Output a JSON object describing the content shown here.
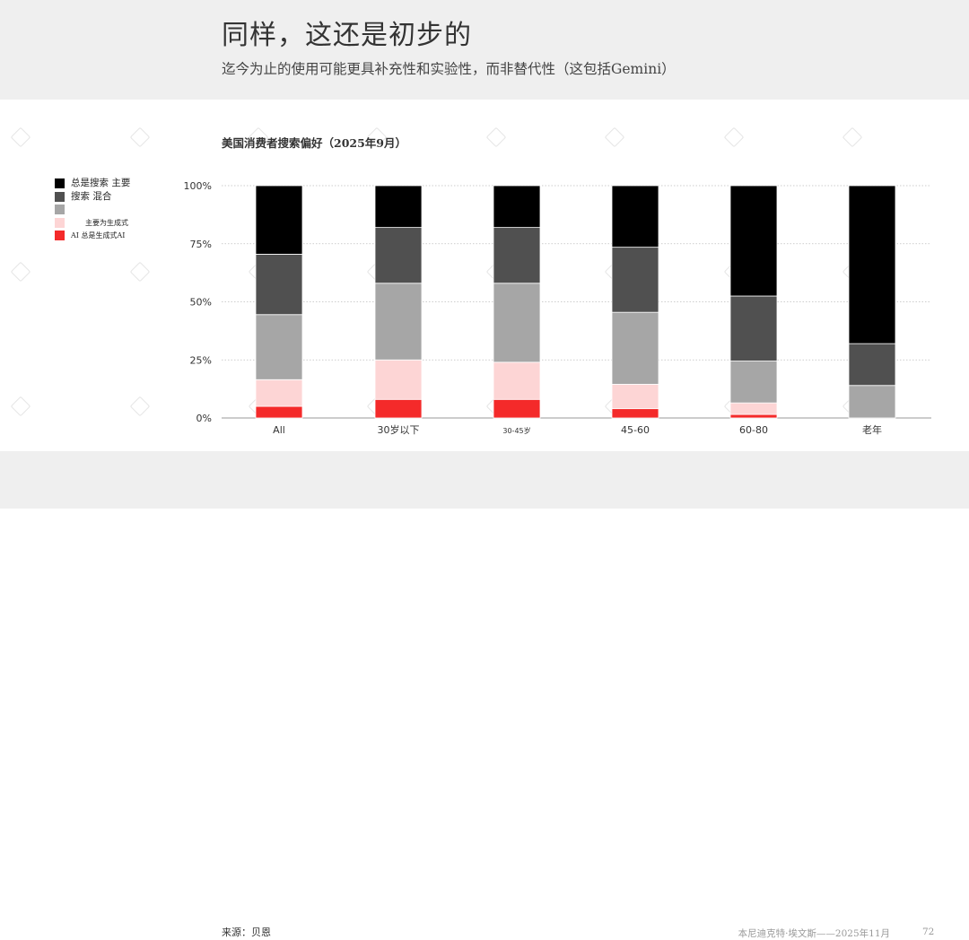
{
  "header": {
    "title": "同样，这还是初步的",
    "subtitle": "迄今为止的使用可能更具补充性和实验性，而非替代性（这包括Gemini）"
  },
  "legend": {
    "items": [
      {
        "label": "总是搜索 主要",
        "color": "#000000"
      },
      {
        "label": "搜索 混合",
        "color": "#505050"
      },
      {
        "label": "",
        "color": "#a6a6a6"
      },
      {
        "label": "主要为生成式",
        "color": "#fdd5d5"
      },
      {
        "label": "AI 总是生成式AI",
        "color": "#f42a2a"
      }
    ]
  },
  "footer": {
    "source": "来源：贝恩",
    "credit": "本尼迪克特·埃文斯——2025年11月",
    "page": "72"
  },
  "chart_data": {
    "type": "bar",
    "stacked": true,
    "title": "美国消费者搜索偏好（2025年9月）",
    "categories": [
      "All",
      "30岁以下",
      "30-45岁",
      "45-60",
      "60-80",
      "老年"
    ],
    "yticks": [
      "0%",
      "25%",
      "50%",
      "75%",
      "100%"
    ],
    "ylim": [
      0,
      100
    ],
    "grid": true,
    "legend_position": "left",
    "series": [
      {
        "name": "AI 总是生成式AI",
        "color": "#f42a2a",
        "values": [
          5,
          8,
          8,
          4,
          1.5,
          0
        ]
      },
      {
        "name": "主要为生成式",
        "color": "#fdd5d5",
        "values": [
          11.5,
          17,
          16,
          10.5,
          5,
          0
        ]
      },
      {
        "color": "#a6a6a6",
        "values": [
          28,
          33,
          34,
          31,
          18,
          14
        ]
      },
      {
        "name": "搜索 混合",
        "color": "#505050",
        "values": [
          26,
          24,
          24,
          28,
          28,
          18
        ]
      },
      {
        "name": "总是搜索 主要",
        "color": "#000000",
        "values": [
          29.5,
          18,
          18,
          26.5,
          47.5,
          68
        ]
      }
    ]
  }
}
